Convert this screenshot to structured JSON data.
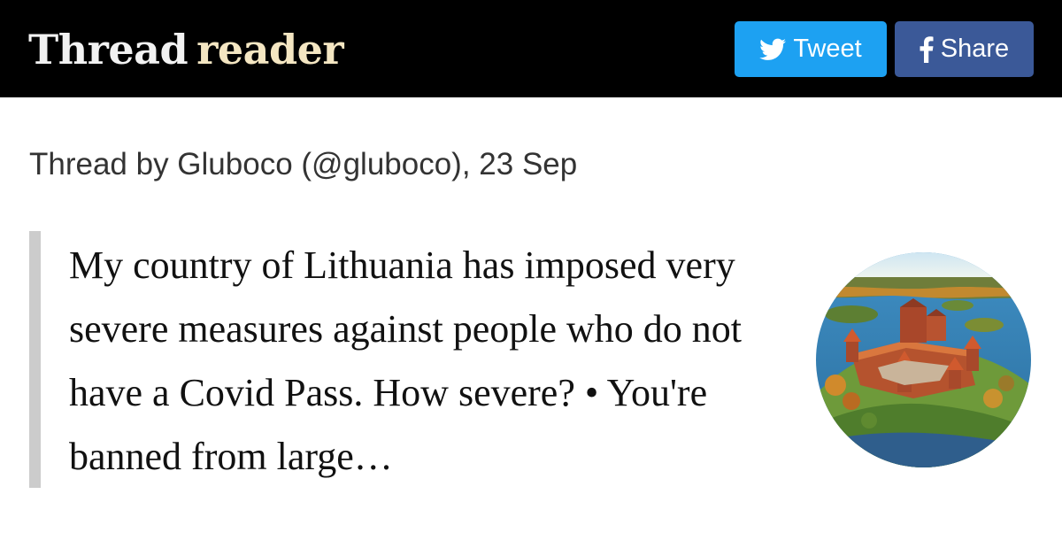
{
  "header": {
    "logo_word1": "Thread",
    "logo_word2": "reader",
    "tweet_label": "Tweet",
    "share_label": "Share",
    "tweet_icon": "twitter-bird-icon",
    "share_icon": "facebook-f-icon"
  },
  "thread": {
    "byline": "Thread by Gluboco (@gluboco), 23 Sep",
    "text": "My country of Lithuania has imposed very severe measures against people who do not have a Covid Pass. How severe? • You're banned from large…"
  },
  "colors": {
    "header_bg": "#000000",
    "tweet_button": "#1da1f2",
    "share_button": "#3b5998",
    "quote_bar": "#cccccc"
  }
}
